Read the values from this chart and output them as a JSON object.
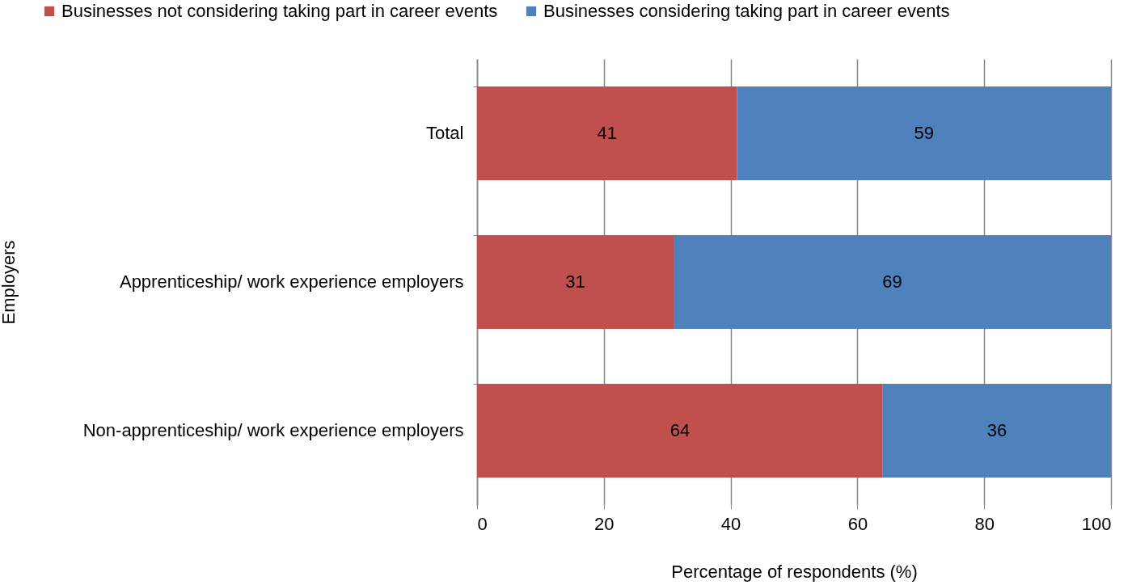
{
  "chart_data": {
    "type": "bar",
    "orientation": "horizontal",
    "stacked": true,
    "xlabel": "Percentage of respondents (%)",
    "ylabel": "Employers",
    "categories": [
      "Total",
      "Apprenticeship/ work experience employers",
      "Non-apprenticeship/ work experience employers"
    ],
    "series": [
      {
        "name": "Businesses not considering taking part in career events",
        "color": "#c0504d",
        "values": [
          41,
          31,
          64
        ]
      },
      {
        "name": "Businesses considering taking part in career events",
        "color": "#4f81bd",
        "values": [
          59,
          69,
          36
        ]
      }
    ],
    "xlim": [
      0,
      100
    ],
    "xticks": [
      0,
      20,
      40,
      60,
      80,
      100
    ],
    "grid": "x",
    "legend": "top",
    "data_labels": true
  }
}
